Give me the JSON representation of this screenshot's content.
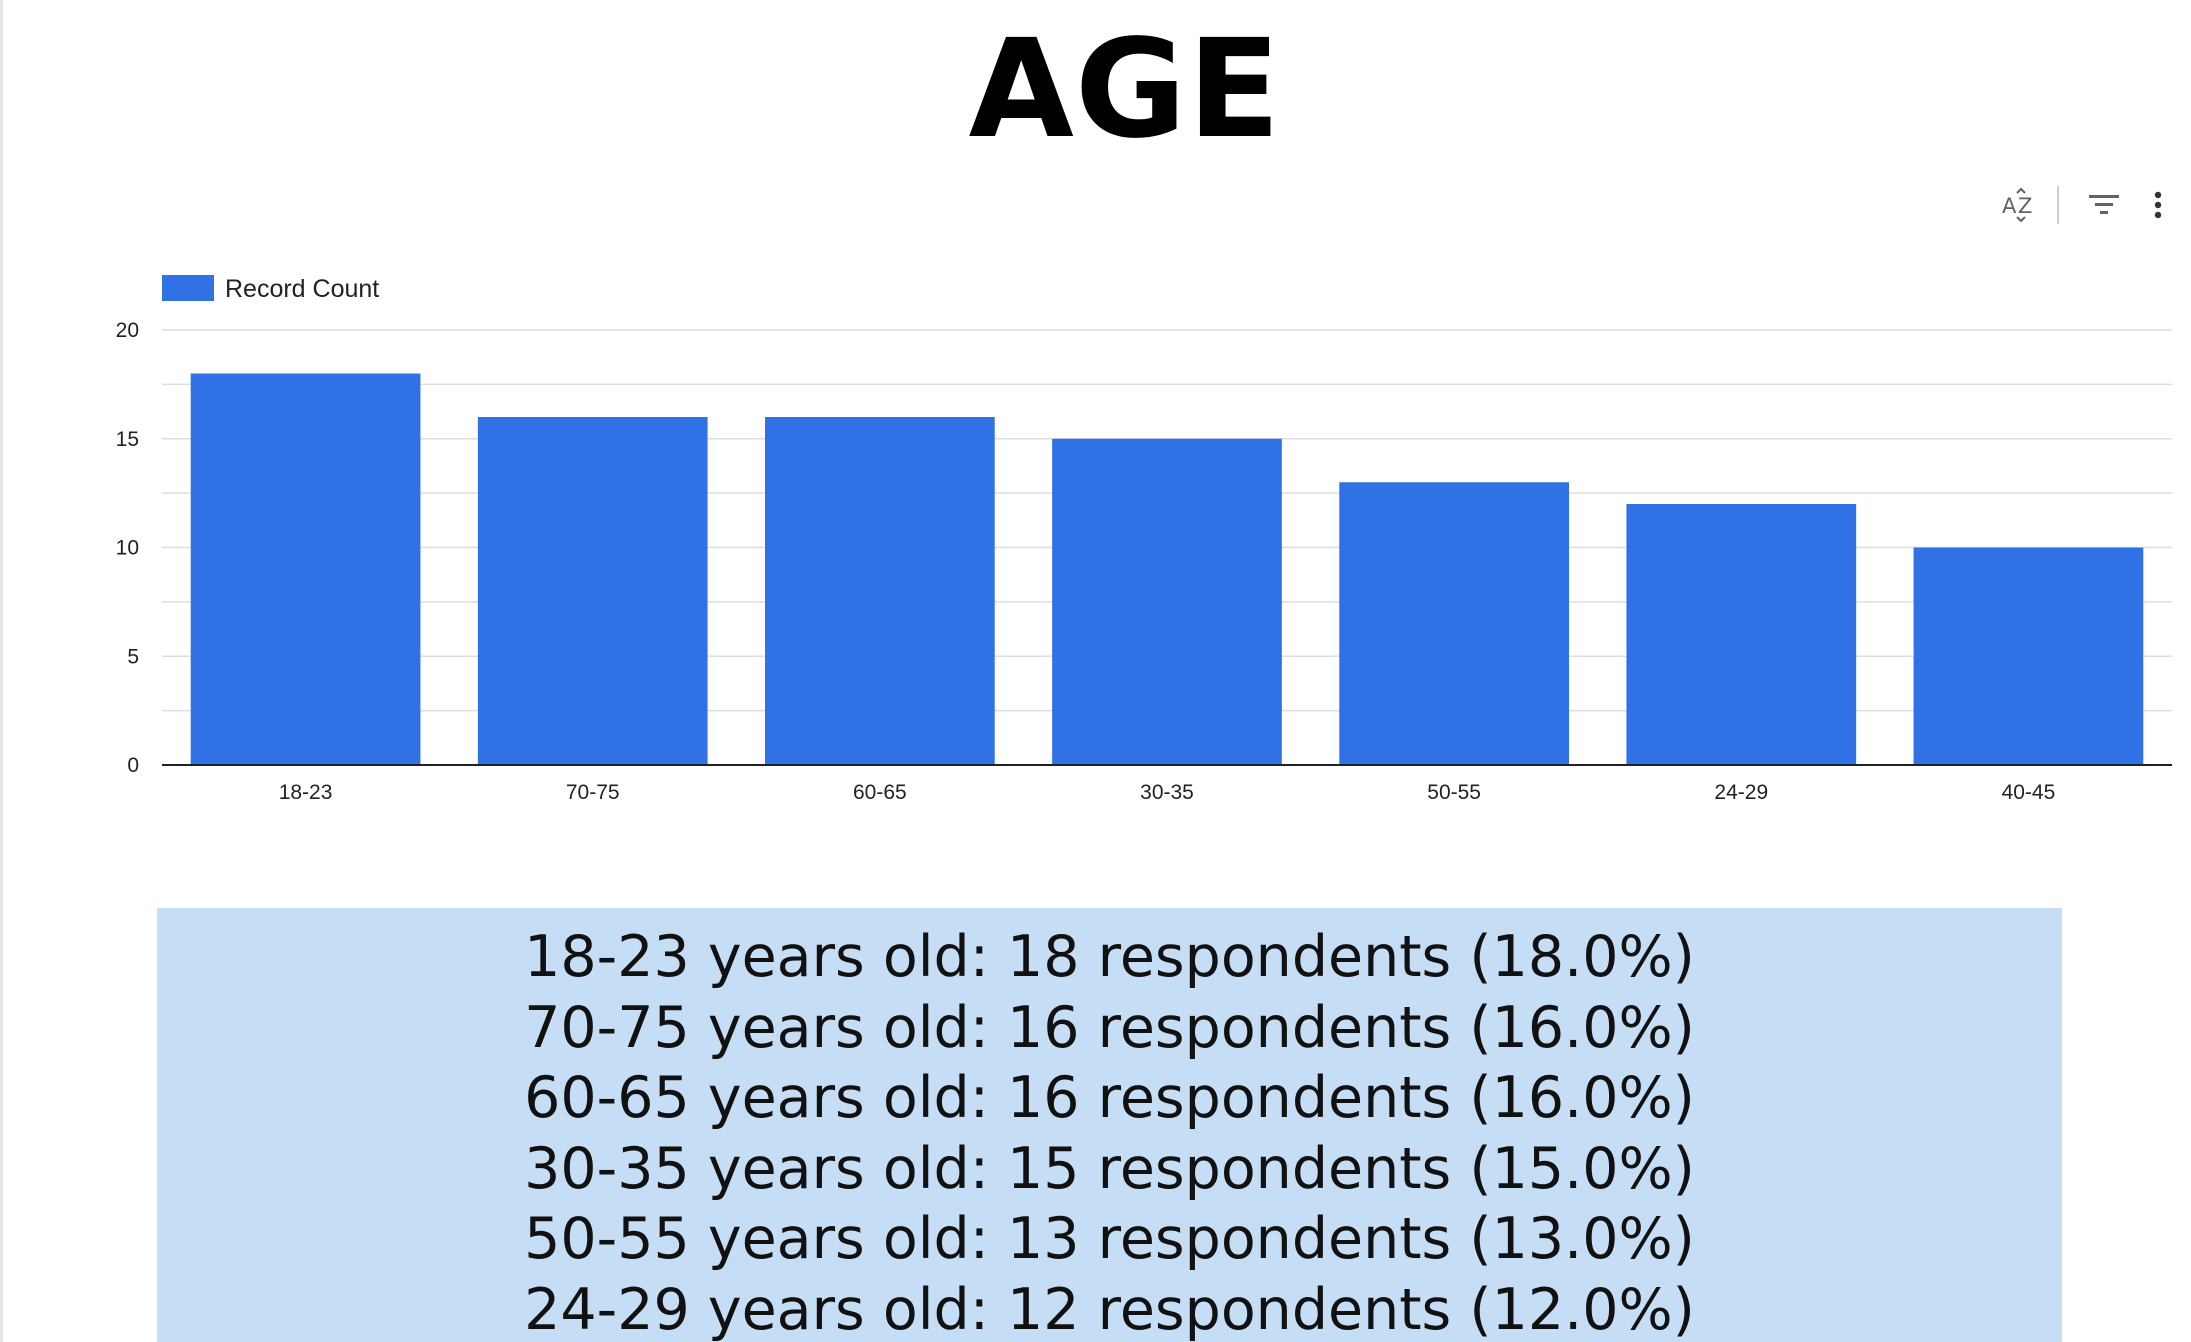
{
  "title": "AGE",
  "toolbar": {
    "icons": [
      "sort-az-icon",
      "filter-icon",
      "more-vert-icon"
    ]
  },
  "chart_data": {
    "type": "bar",
    "categories": [
      "18-23",
      "70-75",
      "60-65",
      "30-35",
      "50-55",
      "24-29",
      "40-45"
    ],
    "series": [
      {
        "name": "Record Count",
        "values": [
          18,
          16,
          16,
          15,
          13,
          12,
          10
        ],
        "color": "#3072e6"
      }
    ],
    "ylim": [
      0,
      20
    ],
    "yticks": [
      0,
      5,
      10,
      15,
      20
    ],
    "grid": true,
    "legend": "top-left"
  },
  "summary": {
    "lines": [
      "18-23 years old: 18 respondents (18.0%)",
      "70-75 years old: 16 respondents (16.0%)",
      "60-65 years old: 16 respondents (16.0%)",
      "30-35 years old: 15 respondents (15.0%)",
      "50-55 years old: 13 respondents (13.0%)",
      "24-29 years old: 12 respondents (12.0%)"
    ]
  }
}
